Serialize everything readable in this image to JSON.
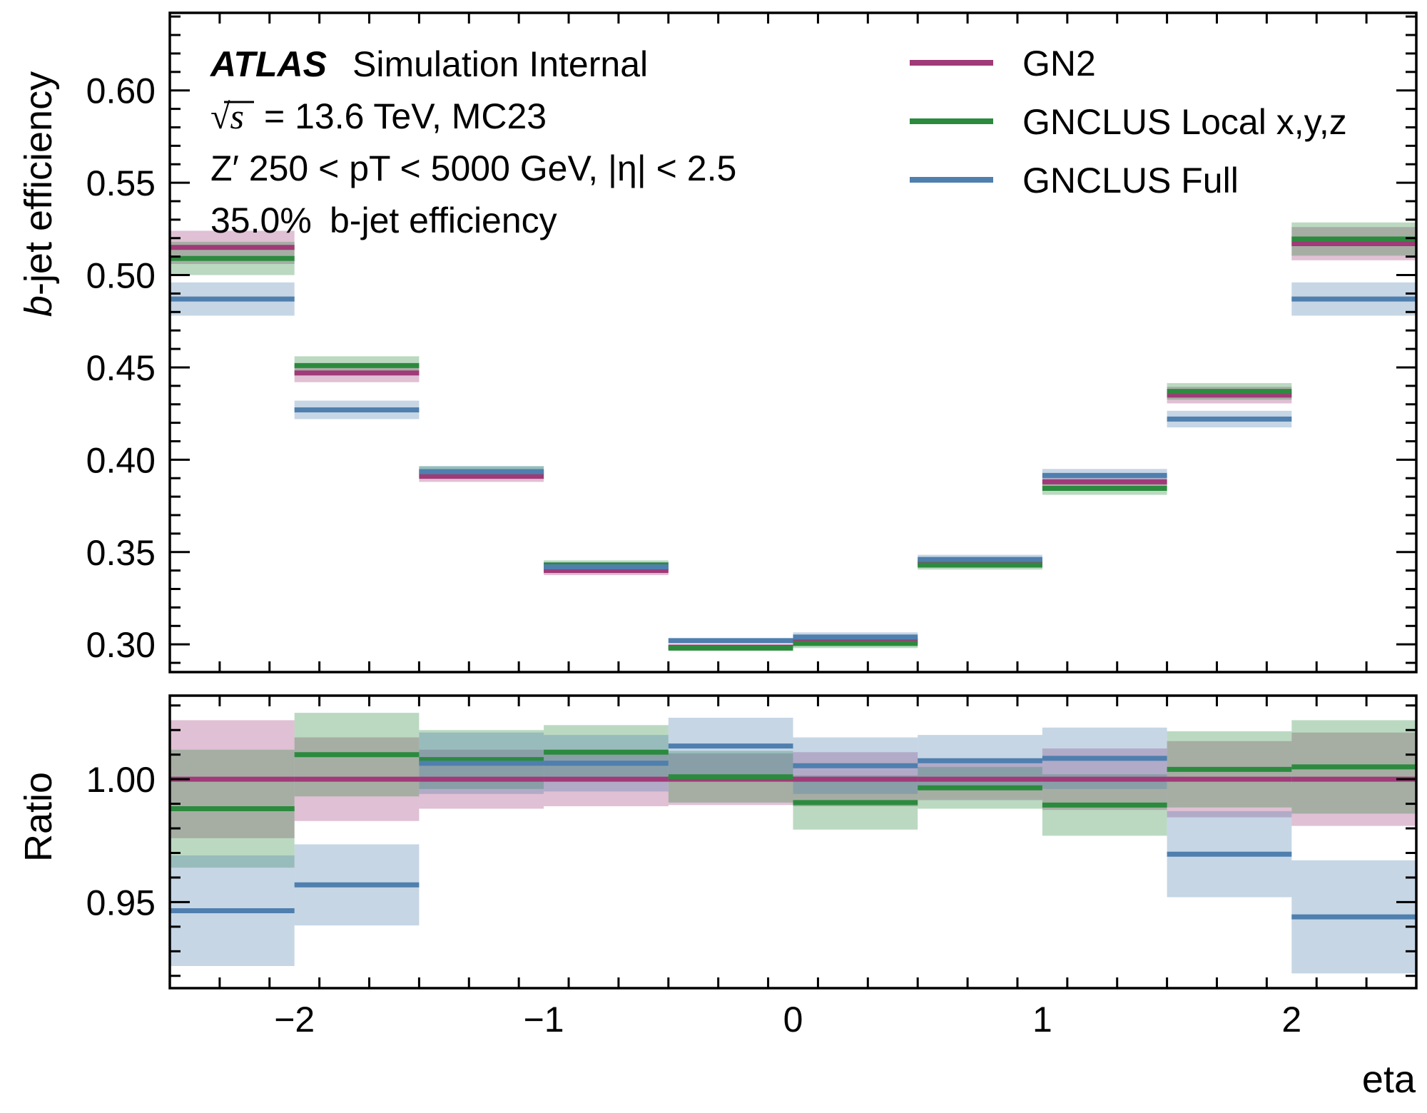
{
  "chart_data": [
    {
      "type": "line",
      "style": "step-histogram-with-error-bands",
      "atlas_label": {
        "brand": "ATLAS",
        "status": "Simulation Internal",
        "energy_prefix": "= 13.6 TeV, MC23",
        "sqrt_s_symbol": "√s",
        "selection_line": "Z′ 250 < pT < 5000 GeV, |η| < 2.5",
        "wp_value": "35.0%",
        "wp_text": "b-jet efficiency"
      },
      "ylabel_italic": "b",
      "ylabel_rest": "-jet efficiency",
      "xlabel": "",
      "ylim": [
        0.285,
        0.642
      ],
      "yticks": [
        "0.30",
        "0.35",
        "0.40",
        "0.45",
        "0.50",
        "0.55",
        "0.60"
      ],
      "legend_position": "top-right",
      "x_bin_edges": [
        -2.5,
        -2.0,
        -1.5,
        -1.0,
        -0.5,
        0.0,
        0.5,
        1.0,
        1.5,
        2.0,
        2.5
      ],
      "series": [
        {
          "name": "GN2",
          "color": "#a03a78",
          "values": [
            0.515,
            0.447,
            0.391,
            0.34,
            0.2985,
            0.302,
            0.344,
            0.388,
            0.435,
            0.517
          ],
          "errors": [
            0.009,
            0.005,
            0.003,
            0.0025,
            0.0015,
            0.0025,
            0.0025,
            0.0035,
            0.0045,
            0.009
          ]
        },
        {
          "name": "GNCLUS Local x,y,z",
          "color": "#2c8a3e",
          "values": [
            0.509,
            0.451,
            0.3935,
            0.343,
            0.298,
            0.3005,
            0.343,
            0.3845,
            0.437,
            0.5195
          ],
          "errors": [
            0.009,
            0.005,
            0.003,
            0.0025,
            0.0015,
            0.0025,
            0.0025,
            0.0035,
            0.0045,
            0.009
          ]
        },
        {
          "name": "GNCLUS Full",
          "color": "#4f7fae",
          "values": [
            0.487,
            0.427,
            0.3935,
            0.342,
            0.302,
            0.304,
            0.346,
            0.3915,
            0.422,
            0.487
          ],
          "errors": [
            0.009,
            0.005,
            0.003,
            0.0025,
            0.0015,
            0.0025,
            0.0025,
            0.0035,
            0.0045,
            0.009
          ]
        }
      ]
    },
    {
      "type": "line",
      "style": "step-histogram-with-error-bands",
      "ylabel": "Ratio",
      "xlabel": "eta",
      "ylim": [
        0.915,
        1.034
      ],
      "yticks": [
        "0.95",
        "1.00"
      ],
      "xlim": [
        -2.5,
        2.5
      ],
      "xticks": [
        "−2",
        "−1",
        "0",
        "1",
        "2"
      ],
      "x_bin_edges": [
        -2.5,
        -2.0,
        -1.5,
        -1.0,
        -0.5,
        0.0,
        0.5,
        1.0,
        1.5,
        2.0,
        2.5
      ],
      "series": [
        {
          "name": "GN2",
          "color": "#a03a78",
          "values": [
            1.0,
            1.0,
            1.0,
            1.0,
            1.0,
            1.0,
            1.0,
            1.0,
            1.0,
            1.0
          ],
          "errors": [
            0.024,
            0.017,
            0.012,
            0.011,
            0.0105,
            0.011,
            0.0085,
            0.0125,
            0.0155,
            0.019
          ]
        },
        {
          "name": "GNCLUS Local x,y,z",
          "color": "#2c8a3e",
          "values": [
            0.988,
            1.01,
            1.008,
            1.011,
            1.001,
            0.9905,
            0.9965,
            0.9895,
            1.004,
            1.005
          ],
          "errors": [
            0.024,
            0.017,
            0.012,
            0.011,
            0.0105,
            0.011,
            0.0085,
            0.0125,
            0.0155,
            0.019
          ]
        },
        {
          "name": "GNCLUS Full",
          "color": "#4f7fae",
          "values": [
            0.9465,
            0.957,
            1.0065,
            1.0065,
            1.0135,
            1.0055,
            1.0075,
            1.0085,
            0.9695,
            0.944
          ],
          "errors": [
            0.0225,
            0.0165,
            0.0125,
            0.0115,
            0.0115,
            0.0115,
            0.0105,
            0.0125,
            0.0175,
            0.023
          ]
        }
      ]
    }
  ]
}
